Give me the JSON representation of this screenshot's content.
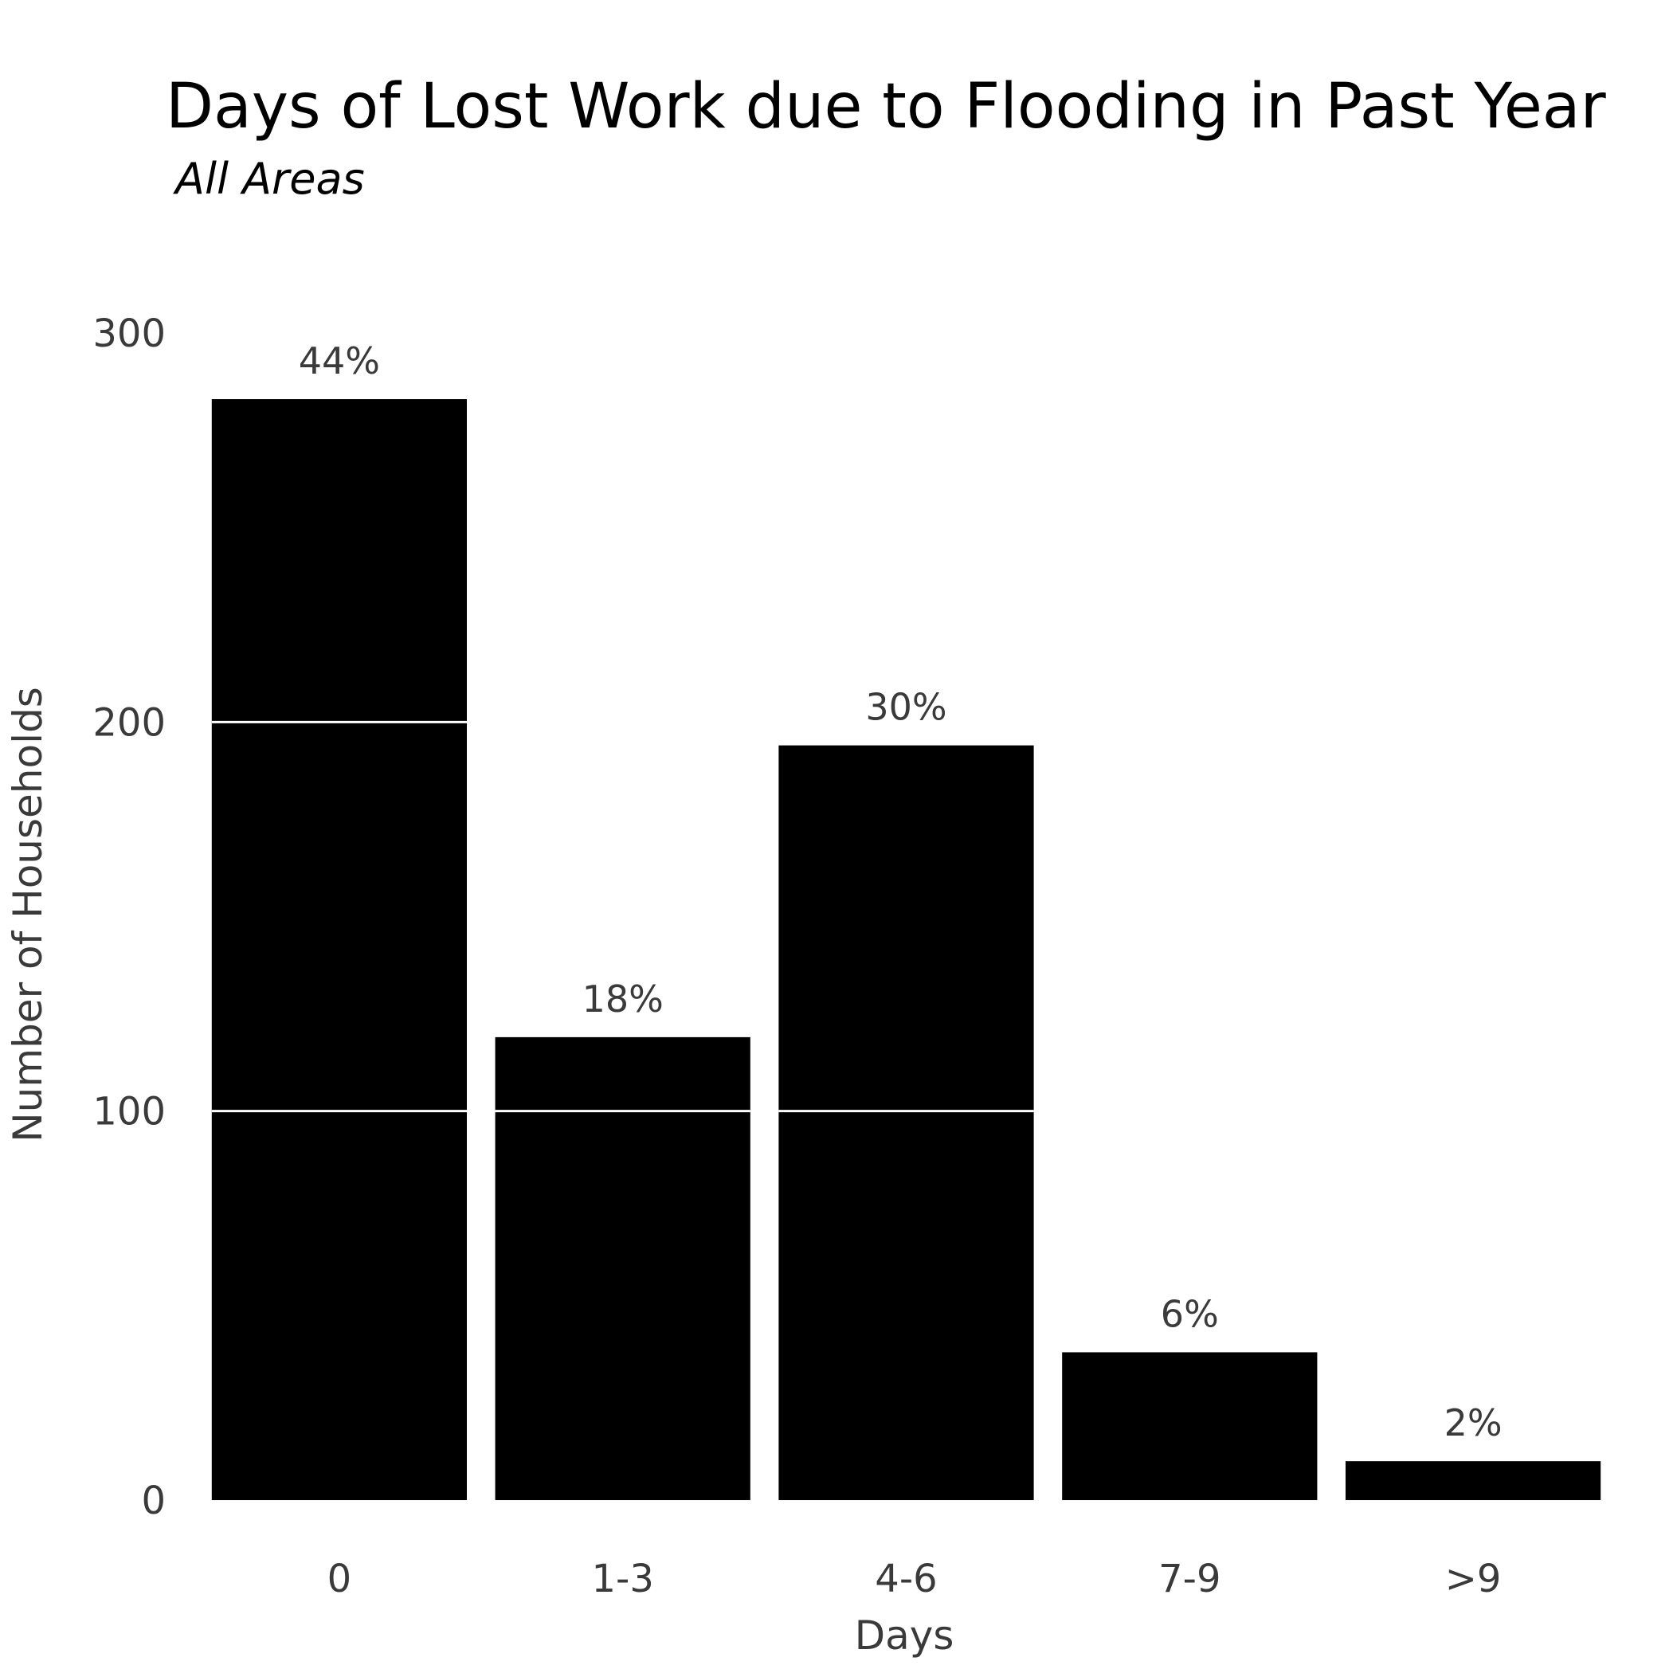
{
  "chart_data": {
    "type": "bar",
    "title": "Days of Lost Work due to Flooding in Past Year",
    "subtitle": "All Areas",
    "xlabel": "Days",
    "ylabel": "Number of Households",
    "categories": [
      "0",
      "1-3",
      "4-6",
      "7-9",
      ">9"
    ],
    "values": [
      283,
      119,
      194,
      38,
      10
    ],
    "data_labels": [
      "44%",
      "18%",
      "30%",
      "6%",
      "2%"
    ],
    "ylim": [
      0,
      300
    ],
    "y_ticks": [
      0,
      100,
      200,
      300
    ],
    "y_tick_labels": [
      "0",
      "100",
      "200",
      "300"
    ],
    "grid": "horizontal lines drawn in white over bars",
    "legend": "none",
    "colors": {
      "bar": "#000000",
      "grid": "#ffffff",
      "text": "#3a3a3a",
      "title": "#000000",
      "background": "#ffffff"
    }
  }
}
